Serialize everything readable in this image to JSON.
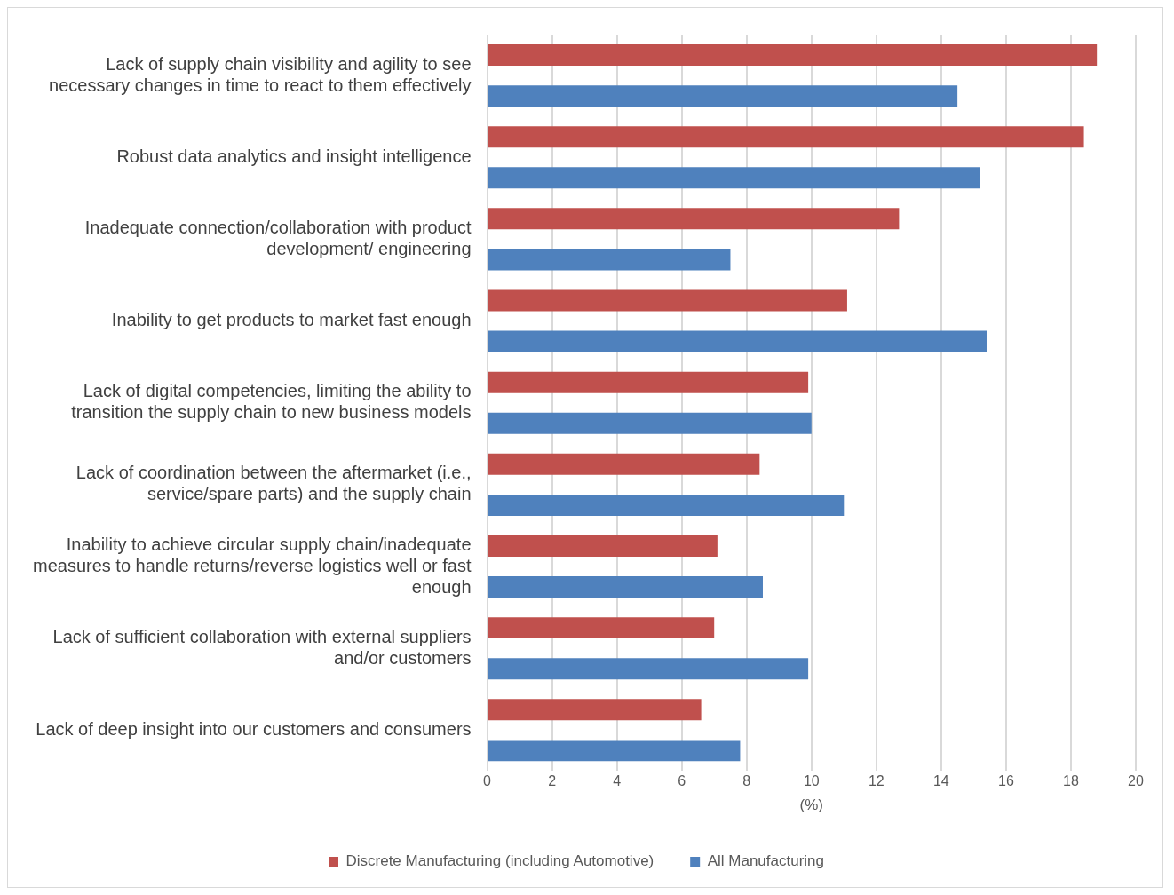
{
  "chart_data": {
    "type": "bar",
    "orientation": "horizontal",
    "xlabel": "(%)",
    "categories": [
      "Lack of supply chain visibility and agility to see necessary changes in time to react to them effectively",
      "Robust data analytics and insight intelligence",
      "Inadequate connection/collaboration with product development/ engineering",
      "Inability to get products to market fast enough",
      "Lack of digital competencies, limiting the ability to transition the supply chain to new business models",
      "Lack of coordination between the aftermarket (i.e., service/spare parts) and the supply chain",
      "Inability to achieve circular supply chain/inadequate measures to handle returns/reverse logistics well or fast enough",
      "Lack of sufficient collaboration with external suppliers and/or customers",
      "Lack of deep insight into our customers and consumers"
    ],
    "series": [
      {
        "name": "Discrete Manufacturing (including Automotive)",
        "color": "#c0504d",
        "values": [
          18.8,
          18.4,
          12.7,
          11.1,
          9.9,
          8.4,
          7.1,
          7.0,
          6.6
        ]
      },
      {
        "name": "All Manufacturing",
        "color": "#4f81bd",
        "values": [
          14.5,
          15.2,
          7.5,
          15.4,
          10.0,
          11.0,
          8.5,
          9.9,
          7.8
        ]
      }
    ],
    "xlim": [
      0,
      20
    ],
    "xticks": [
      0,
      2,
      4,
      6,
      8,
      10,
      12,
      14,
      16,
      18,
      20
    ],
    "grid": "x",
    "legend": "bottom"
  }
}
